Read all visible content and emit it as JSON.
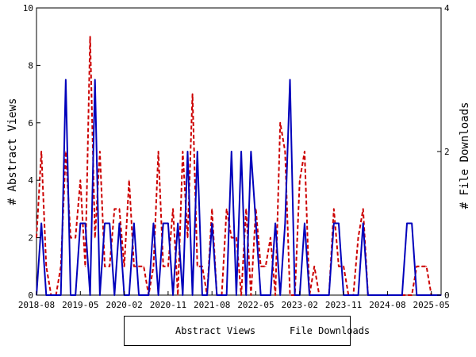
{
  "chart_data": {
    "type": "line",
    "title": "",
    "ylabel_left": "# Abstract Views",
    "ylabel_right": "# File Downloads",
    "ylim_left": [
      0,
      10
    ],
    "ylim_right": [
      0,
      4
    ],
    "yticks_left": [
      "0",
      "2",
      "4",
      "6",
      "8",
      "10"
    ],
    "yticks_right": [
      "0",
      "2",
      "4"
    ],
    "xtick_labels": [
      "2018-08",
      "2019-05",
      "2020-02",
      "2020-11",
      "2021-08",
      "2022-05",
      "2023-02",
      "2023-11",
      "2024-08",
      "2025-05"
    ],
    "x": [
      "2018-08",
      "2018-09",
      "2018-10",
      "2018-11",
      "2018-12",
      "2019-01",
      "2019-02",
      "2019-03",
      "2019-04",
      "2019-05",
      "2019-06",
      "2019-07",
      "2019-08",
      "2019-09",
      "2019-10",
      "2019-11",
      "2019-12",
      "2020-01",
      "2020-02",
      "2020-03",
      "2020-04",
      "2020-05",
      "2020-06",
      "2020-07",
      "2020-08",
      "2020-09",
      "2020-10",
      "2020-11",
      "2020-12",
      "2021-01",
      "2021-02",
      "2021-03",
      "2021-04",
      "2021-05",
      "2021-06",
      "2021-07",
      "2021-08",
      "2021-09",
      "2021-10",
      "2021-11",
      "2021-12",
      "2022-01",
      "2022-02",
      "2022-03",
      "2022-04",
      "2022-05",
      "2022-06",
      "2022-07",
      "2022-08",
      "2022-09",
      "2022-10",
      "2022-11",
      "2022-12",
      "2023-01",
      "2023-02",
      "2023-03",
      "2023-04",
      "2023-05",
      "2023-06",
      "2023-07",
      "2023-08",
      "2023-09",
      "2023-10",
      "2023-11",
      "2023-12",
      "2024-01",
      "2024-02",
      "2024-03",
      "2024-04",
      "2024-05",
      "2024-06",
      "2024-07",
      "2024-08",
      "2024-09",
      "2024-10",
      "2024-11",
      "2024-12",
      "2025-01",
      "2025-02",
      "2025-03",
      "2025-04",
      "2025-05",
      "2025-06",
      "2025-07"
    ],
    "series": [
      {
        "name": "Abstract Views",
        "axis": "left",
        "color": "#cc0000",
        "dash": true,
        "values": [
          2,
          5,
          1,
          0,
          0,
          1,
          5,
          2,
          2,
          4,
          1,
          9,
          2,
          5,
          1,
          1,
          3,
          3,
          1,
          4,
          1,
          1,
          1,
          0,
          1,
          5,
          1,
          1,
          3,
          0,
          5,
          2,
          7,
          1,
          1,
          0,
          3,
          0,
          0,
          3,
          2,
          2,
          0,
          3,
          0,
          3,
          1,
          1,
          2,
          0,
          6,
          5,
          0,
          0,
          4,
          5,
          0,
          1,
          0,
          0,
          0,
          3,
          1,
          1,
          0,
          0,
          2,
          3,
          0,
          0,
          0,
          0,
          0,
          0,
          0,
          0,
          0,
          0,
          1,
          1,
          1,
          0,
          0,
          0
        ]
      },
      {
        "name": "File Downloads",
        "axis": "right",
        "color": "#0000bb",
        "dash": false,
        "values": [
          0,
          1,
          0,
          0,
          0,
          0,
          3,
          0,
          0,
          1,
          1,
          0,
          3,
          0,
          1,
          1,
          0,
          1,
          0,
          0,
          1,
          0,
          0,
          0,
          1,
          0,
          1,
          1,
          0,
          1,
          0,
          2,
          0,
          2,
          0,
          0,
          1,
          0,
          0,
          0,
          2,
          0,
          2,
          0,
          2,
          1,
          0,
          0,
          0,
          1,
          0,
          1,
          3,
          0,
          0,
          1,
          0,
          0,
          0,
          0,
          0,
          1,
          1,
          0,
          0,
          0,
          0,
          1,
          0,
          0,
          0,
          0,
          0,
          0,
          0,
          0,
          1,
          1,
          0,
          0,
          0,
          0,
          0,
          0
        ]
      }
    ],
    "grid": false,
    "legend": "bottom"
  },
  "legend": {
    "views_label": "Abstract Views",
    "downloads_label": "File Downloads"
  }
}
